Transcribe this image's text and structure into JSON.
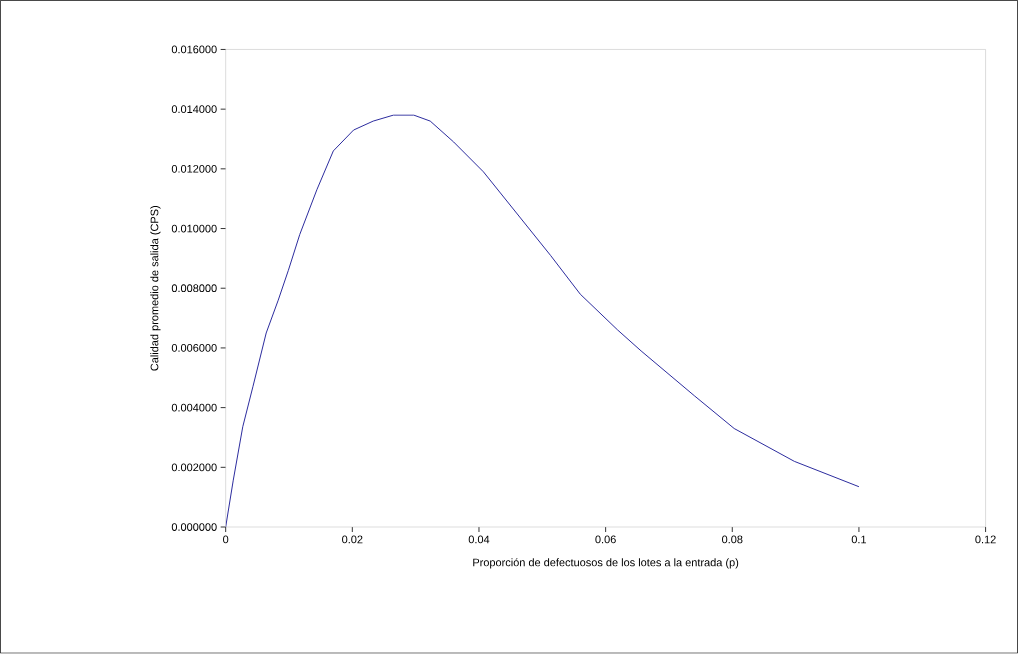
{
  "chart_data": {
    "type": "line",
    "xlabel": "Proporción de defectuosos de los lotes a la entrada (p)",
    "ylabel": "Calidad promedio de salida (CPS)",
    "xlim": [
      0,
      0.12
    ],
    "ylim": [
      0,
      0.016
    ],
    "xticks": [
      0,
      0.02,
      0.04,
      0.06,
      0.08,
      0.1,
      0.12
    ],
    "yticks": [
      {
        "value": 0,
        "label": "0.000000"
      },
      {
        "value": 0.002,
        "label": "0.002000"
      },
      {
        "value": 0.004,
        "label": "0.004000"
      },
      {
        "value": 0.006,
        "label": "0.006000"
      },
      {
        "value": 0.008,
        "label": "0.008000"
      },
      {
        "value": 0.01,
        "label": "0.010000"
      },
      {
        "value": 0.012,
        "label": "0.012000"
      },
      {
        "value": 0.014,
        "label": "0.014000"
      },
      {
        "value": 0.016,
        "label": "0.016000"
      }
    ],
    "marker": "none",
    "line_style": "solid",
    "series": [
      {
        "color": "#2b2b9e",
        "x": [
          0,
          0.0012,
          0.0027,
          0.0043,
          0.0064,
          0.0083,
          0.0099,
          0.0117,
          0.0144,
          0.017,
          0.0202,
          0.0233,
          0.0265,
          0.0297,
          0.0323,
          0.036,
          0.0407,
          0.046,
          0.0513,
          0.056,
          0.0619,
          0.0656,
          0.074,
          0.0803,
          0.0898,
          0.1
        ],
        "values": [
          0,
          0.00157,
          0.00336,
          0.0047,
          0.0065,
          0.0076,
          0.0086,
          0.0098,
          0.0113,
          0.0126,
          0.0133,
          0.0136,
          0.0138,
          0.0138,
          0.0136,
          0.0129,
          0.0119,
          0.0105,
          0.0091,
          0.0078,
          0.0066,
          0.0059,
          0.0044,
          0.0033,
          0.0022,
          0.00135
        ]
      }
    ]
  }
}
